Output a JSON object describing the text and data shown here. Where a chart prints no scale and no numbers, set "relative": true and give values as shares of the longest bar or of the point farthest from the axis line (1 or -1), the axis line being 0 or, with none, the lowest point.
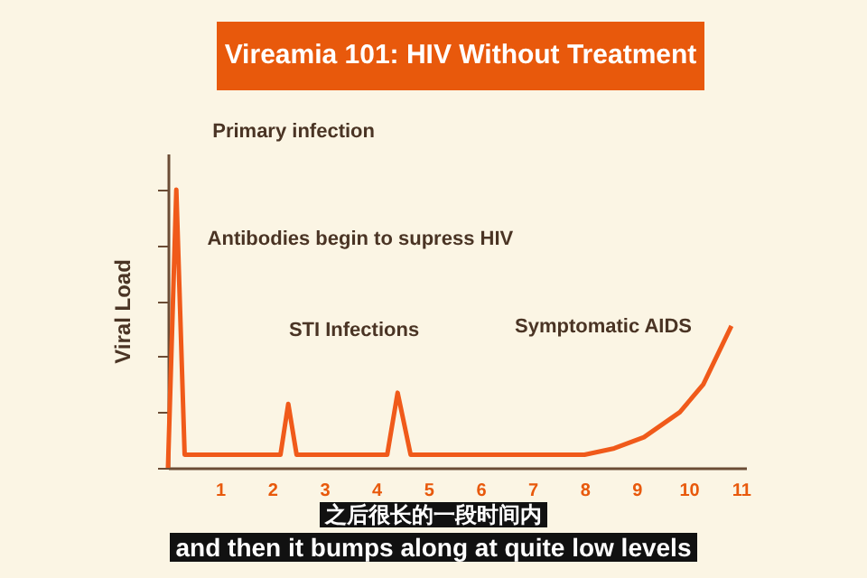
{
  "chart_data": {
    "type": "line",
    "title": "Vireamia 101: HIV Without Treatment",
    "ylabel": "Viral Load",
    "relative": true,
    "x": [
      0,
      0.16,
      0.32,
      2.16,
      2.31,
      2.47,
      4.21,
      4.41,
      4.66,
      8.0,
      8.57,
      9.14,
      9.83,
      10.28,
      10.82
    ],
    "series": [
      {
        "color": "#f05a1a",
        "values": [
          0,
          1,
          0.047,
          0.047,
          0.23,
          0.047,
          0.047,
          0.27,
          0.047,
          0.047,
          0.07,
          0.11,
          0.2,
          0.3,
          0.51
        ]
      }
    ],
    "xlim": [
      0,
      11.1
    ],
    "xticks": [
      1,
      2,
      3,
      4,
      5,
      6,
      7,
      8,
      9,
      10,
      11
    ],
    "grid": false,
    "marker": "none",
    "line_style": "solid",
    "annotations": [
      {
        "text": "Primary infection",
        "x": 0.16,
        "y": 1
      },
      {
        "text": "Antibodies begin to supress HIV",
        "x": 0.27,
        "y": 0.82
      },
      "STI Infections",
      "Symptomatic AIDS",
      "之后很长的一段时间内",
      "and then it bumps along at quite low levels"
    ]
  }
}
